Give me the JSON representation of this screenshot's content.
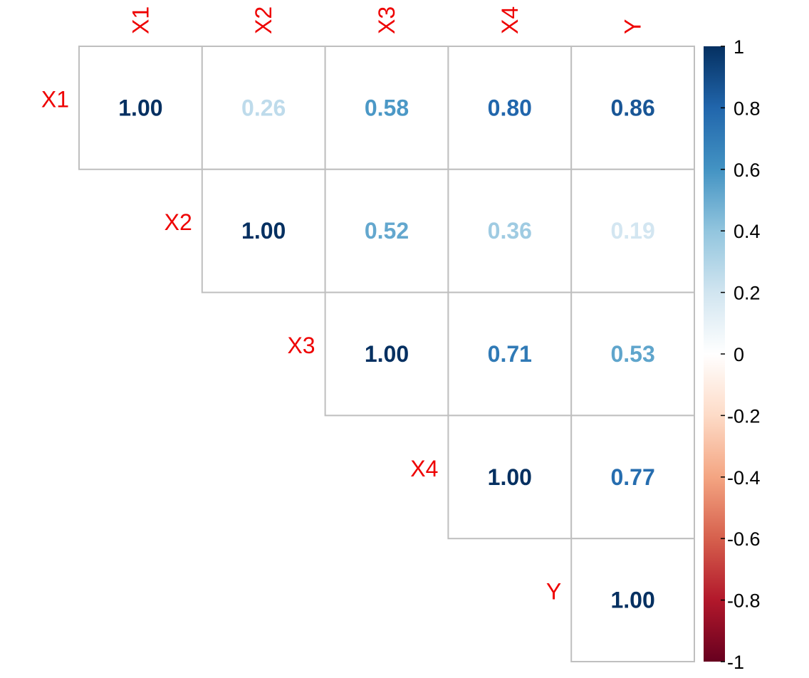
{
  "chart_data": {
    "type": "heatmap",
    "subtype": "correlation-matrix-upper",
    "variables": [
      "X1",
      "X2",
      "X3",
      "X4",
      "Y"
    ],
    "matrix": [
      [
        1.0,
        0.26,
        0.58,
        0.8,
        0.86
      ],
      [
        null,
        1.0,
        0.52,
        0.36,
        0.19
      ],
      [
        null,
        null,
        1.0,
        0.71,
        0.53
      ],
      [
        null,
        null,
        null,
        1.0,
        0.77
      ],
      [
        null,
        null,
        null,
        null,
        1.0
      ]
    ],
    "value_format": "2 decimals",
    "label_color": "#ee0000",
    "grid_color": "#bfbfbf",
    "colorbar": {
      "range": [
        -1,
        1
      ],
      "ticks": [
        1,
        0.8,
        0.6,
        0.4,
        0.2,
        0,
        -0.2,
        -0.4,
        -0.6,
        -0.8,
        -1
      ],
      "tick_labels": [
        "1",
        "0.8",
        "0.6",
        "0.4",
        "0.2",
        "0",
        "-0.2",
        "-0.4",
        "-0.6",
        "-0.8",
        "-1"
      ],
      "colors": [
        "#67001F",
        "#B2182B",
        "#D6604D",
        "#F4A582",
        "#FDDBC7",
        "#FFFFFF",
        "#D1E5F0",
        "#92C5DE",
        "#4393C3",
        "#2166AC",
        "#053061"
      ]
    }
  }
}
